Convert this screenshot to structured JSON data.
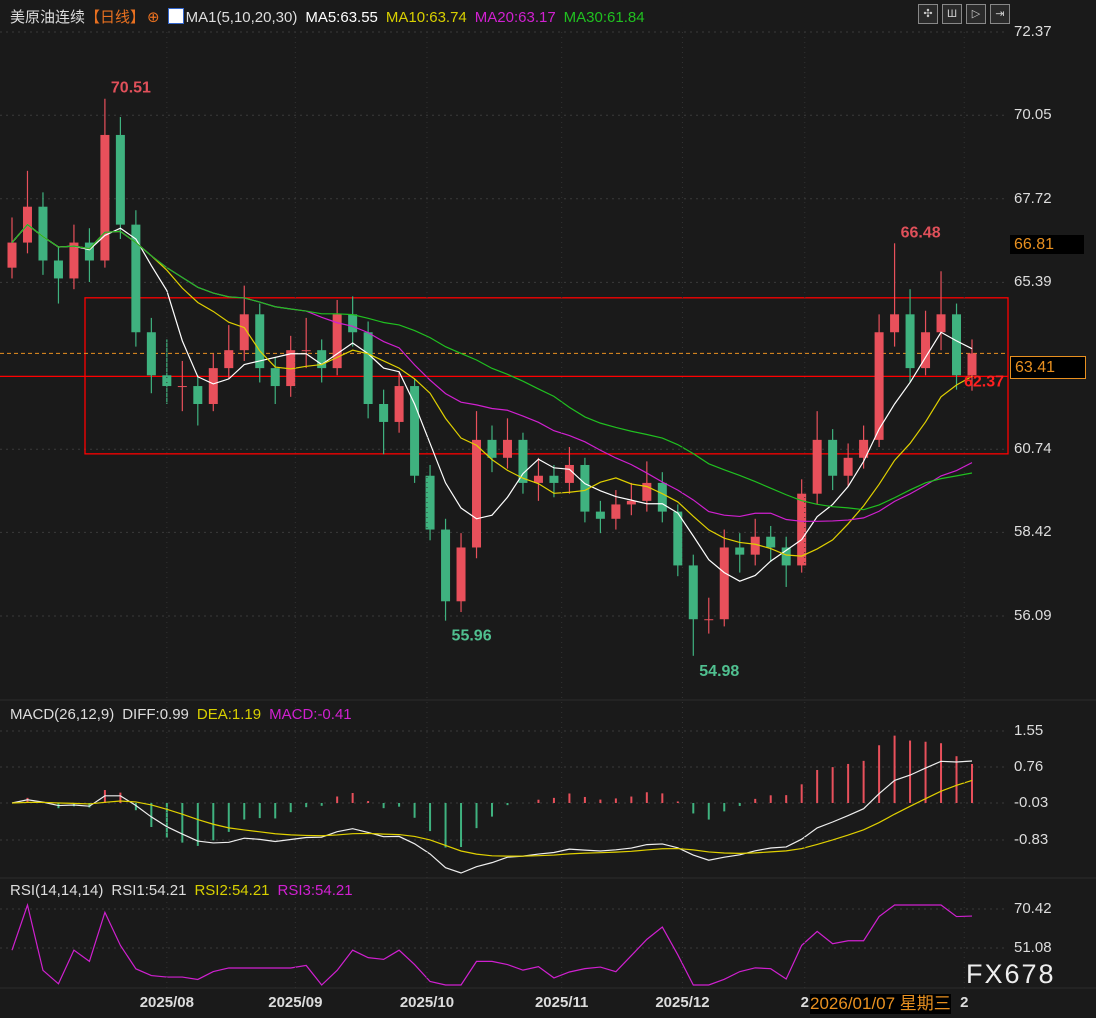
{
  "header": {
    "symbol": "美原油连续",
    "period": "【日线】",
    "indicator": "MA1(5,10,20,30)",
    "ma5": "MA5:63.55",
    "ma10": "MA10:63.74",
    "ma20": "MA20:63.17",
    "ma30": "MA30:61.84"
  },
  "macd_header": {
    "name": "MACD(26,12,9)",
    "diff": "DIFF:0.99",
    "dea": "DEA:1.19",
    "macd": "MACD:-0.41"
  },
  "rsi_header": {
    "name": "RSI(14,14,14)",
    "rsi1": "RSI1:54.21",
    "rsi2": "RSI2:54.21",
    "rsi3": "RSI3:54.21"
  },
  "tooltip_date": "2026/01/07 星期三",
  "watermark": "FX678",
  "colors": {
    "up": "#e8505b",
    "down": "#3fb27f",
    "ma5": "#ffffff",
    "ma10": "#e0d000",
    "ma20": "#d020d0",
    "ma30": "#20c020",
    "box": "#ff0000",
    "last": "#e89020"
  },
  "chart_data": {
    "type": "candlestick",
    "price_axis": {
      "ticks": [
        "72.37",
        "70.05",
        "67.72",
        "65.39",
        "60.74",
        "58.42",
        "56.09"
      ],
      "ylim": [
        56.09,
        72.37
      ]
    },
    "last_price": "63.41",
    "marker_price": "66.81",
    "box_lines": [
      64.96,
      62.77,
      60.61
    ],
    "annotations": [
      {
        "text": "70.51",
        "index": 6
      },
      {
        "text": "55.96",
        "index": 28
      },
      {
        "text": "54.98",
        "index": 44
      },
      {
        "text": "66.48",
        "index": 57
      },
      {
        "text": "62.37",
        "index": 62
      }
    ],
    "x_ticks": [
      {
        "label": "2025/08",
        "index": 10
      },
      {
        "label": "2025/09",
        "index": 18.3
      },
      {
        "label": "2025/10",
        "index": 26.8
      },
      {
        "label": "2025/11",
        "index": 35.5
      },
      {
        "label": "2025/12",
        "index": 43.3
      },
      {
        "label": "2",
        "index": 51.2
      },
      {
        "label": "2",
        "index": 61.5
      }
    ],
    "macd_axis": {
      "ticks": [
        "1.55",
        "0.76",
        "-0.03",
        "-0.83"
      ]
    },
    "rsi_axis": {
      "ticks": [
        "70.42",
        "51.08"
      ]
    },
    "ohlc": [
      [
        65.8,
        67.2,
        65.5,
        66.5
      ],
      [
        66.5,
        68.5,
        66.2,
        67.5
      ],
      [
        67.5,
        67.9,
        65.6,
        66.0
      ],
      [
        66.0,
        66.4,
        64.8,
        65.5
      ],
      [
        65.5,
        67.0,
        65.2,
        66.5
      ],
      [
        66.5,
        66.9,
        65.4,
        66.0
      ],
      [
        66.0,
        70.51,
        65.8,
        69.5
      ],
      [
        69.5,
        70.0,
        66.6,
        67.0
      ],
      [
        67.0,
        67.4,
        63.6,
        64.0
      ],
      [
        64.0,
        64.4,
        62.3,
        62.8
      ],
      [
        62.8,
        63.8,
        62.0,
        62.5
      ],
      [
        62.5,
        63.2,
        61.8,
        62.5
      ],
      [
        62.5,
        62.8,
        61.4,
        62.0
      ],
      [
        62.0,
        63.4,
        61.8,
        63.0
      ],
      [
        63.0,
        64.2,
        62.7,
        63.5
      ],
      [
        63.5,
        65.3,
        63.2,
        64.5
      ],
      [
        64.5,
        64.8,
        62.6,
        63.0
      ],
      [
        63.0,
        63.3,
        62.0,
        62.5
      ],
      [
        62.5,
        63.9,
        62.2,
        63.5
      ],
      [
        63.5,
        64.4,
        63.0,
        63.5
      ],
      [
        63.5,
        63.8,
        62.6,
        63.0
      ],
      [
        63.0,
        64.9,
        62.8,
        64.5
      ],
      [
        64.5,
        65.0,
        63.6,
        64.0
      ],
      [
        64.0,
        64.3,
        61.6,
        62.0
      ],
      [
        62.0,
        62.4,
        60.6,
        61.5
      ],
      [
        61.5,
        62.9,
        61.2,
        62.5
      ],
      [
        62.5,
        62.7,
        59.8,
        60.0
      ],
      [
        60.0,
        60.3,
        58.2,
        58.5
      ],
      [
        58.5,
        58.8,
        55.96,
        56.5
      ],
      [
        56.5,
        58.4,
        56.2,
        58.0
      ],
      [
        58.0,
        61.8,
        57.7,
        61.0
      ],
      [
        61.0,
        61.4,
        60.1,
        60.5
      ],
      [
        60.5,
        61.6,
        60.2,
        61.0
      ],
      [
        61.0,
        61.2,
        59.5,
        59.8
      ],
      [
        59.8,
        60.5,
        59.3,
        60.0
      ],
      [
        60.0,
        60.3,
        59.4,
        59.8
      ],
      [
        59.8,
        60.8,
        59.5,
        60.3
      ],
      [
        60.3,
        60.5,
        58.7,
        59.0
      ],
      [
        59.0,
        59.3,
        58.4,
        58.8
      ],
      [
        58.8,
        59.6,
        58.5,
        59.2
      ],
      [
        59.2,
        59.8,
        58.9,
        59.3
      ],
      [
        59.3,
        60.4,
        59.0,
        59.8
      ],
      [
        59.8,
        60.1,
        58.7,
        59.0
      ],
      [
        59.0,
        59.2,
        57.2,
        57.5
      ],
      [
        57.5,
        57.8,
        54.98,
        56.0
      ],
      [
        56.0,
        56.6,
        55.6,
        56.0
      ],
      [
        56.0,
        58.5,
        55.8,
        58.0
      ],
      [
        58.0,
        58.4,
        57.3,
        57.8
      ],
      [
        57.8,
        58.8,
        57.5,
        58.3
      ],
      [
        58.3,
        58.6,
        57.6,
        58.0
      ],
      [
        58.0,
        58.3,
        56.9,
        57.5
      ],
      [
        57.5,
        59.9,
        57.3,
        59.5
      ],
      [
        59.5,
        61.8,
        59.2,
        61.0
      ],
      [
        61.0,
        61.3,
        59.6,
        60.0
      ],
      [
        60.0,
        60.9,
        59.7,
        60.5
      ],
      [
        60.5,
        61.4,
        60.2,
        61.0
      ],
      [
        61.0,
        64.5,
        60.8,
        64.0
      ],
      [
        64.0,
        66.48,
        63.6,
        64.5
      ],
      [
        64.5,
        65.2,
        62.6,
        63.0
      ],
      [
        63.0,
        64.6,
        62.8,
        64.0
      ],
      [
        64.0,
        65.7,
        63.5,
        64.5
      ],
      [
        64.5,
        64.8,
        62.4,
        62.8
      ],
      [
        62.8,
        63.8,
        62.37,
        63.41
      ]
    ]
  }
}
